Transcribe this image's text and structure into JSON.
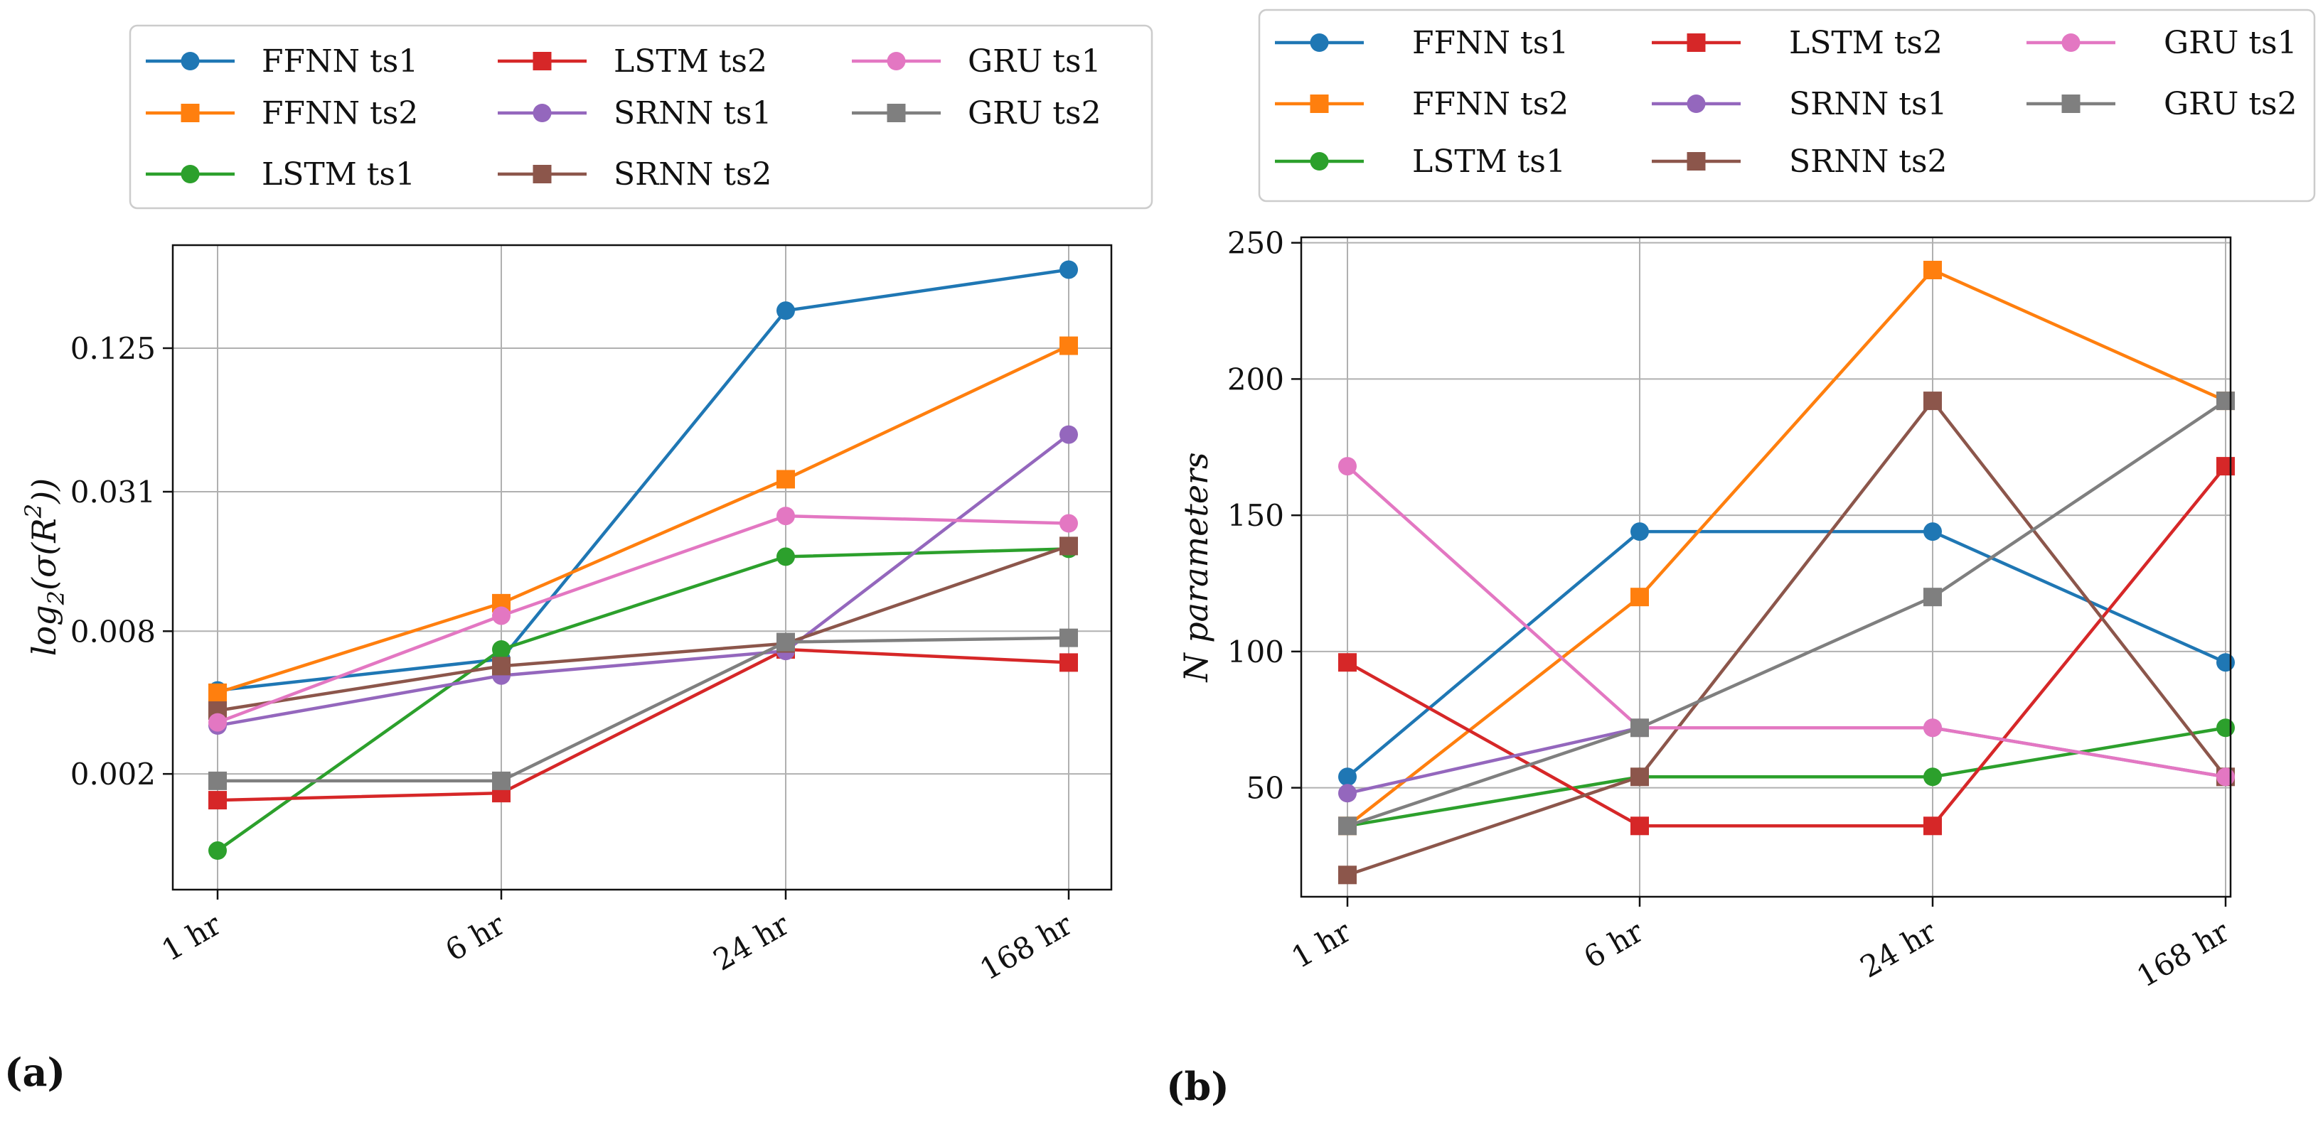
{
  "figure": {
    "panel_a_label": "(a)",
    "panel_b_label": "(b)"
  },
  "chart_data": [
    {
      "type": "line",
      "title": "",
      "xlabel": "",
      "ylabel": "log₂(σ(R²))",
      "ylabel_parts": {
        "main": "log",
        "sub": "2",
        "rest": "(σ(R",
        "sup": "2",
        "close": "))"
      },
      "yscale": "log2",
      "categories": [
        "1 hr",
        "6 hr",
        "24 hr",
        "168 hr"
      ],
      "yticks": [
        0.002,
        0.008,
        0.031,
        0.125
      ],
      "ytick_labels": [
        "0.002",
        "0.008",
        "0.031",
        "0.125"
      ],
      "ylim": [
        0.00065,
        0.34
      ],
      "grid": true,
      "legend": "top-center",
      "legend_columns": 3,
      "series": [
        {
          "name": "FFNN ts1",
          "color": "#1f77b4",
          "marker": "circle",
          "values": [
            0.0045,
            0.0061,
            0.18,
            0.268
          ]
        },
        {
          "name": "FFNN ts2",
          "color": "#ff7f0e",
          "marker": "square",
          "values": [
            0.0044,
            0.0105,
            0.035,
            0.128
          ]
        },
        {
          "name": "LSTM ts1",
          "color": "#2ca02c",
          "marker": "circle",
          "values": [
            0.00095,
            0.0067,
            0.0165,
            0.0178
          ]
        },
        {
          "name": "LSTM ts2",
          "color": "#d62728",
          "marker": "square",
          "values": [
            0.00155,
            0.00166,
            0.0067,
            0.0059
          ]
        },
        {
          "name": "SRNN ts1",
          "color": "#9467bd",
          "marker": "circle",
          "values": [
            0.0032,
            0.0052,
            0.0066,
            0.054
          ]
        },
        {
          "name": "SRNN ts2",
          "color": "#8c564b",
          "marker": "square",
          "values": [
            0.0037,
            0.0057,
            0.0071,
            0.0183
          ]
        },
        {
          "name": "GRU ts1",
          "color": "#e377c2",
          "marker": "circle",
          "values": [
            0.0033,
            0.0093,
            0.0245,
            0.0228
          ]
        },
        {
          "name": "GRU ts2",
          "color": "#7f7f7f",
          "marker": "square",
          "values": [
            0.00187,
            0.00187,
            0.0072,
            0.0075
          ]
        }
      ]
    },
    {
      "type": "line",
      "title": "",
      "xlabel": "",
      "ylabel": "N parameters",
      "categories": [
        "1 hr",
        "6 hr",
        "24 hr",
        "168 hr"
      ],
      "yticks": [
        50,
        100,
        150,
        200,
        250
      ],
      "ytick_labels": [
        "50",
        "100",
        "150",
        "200",
        "250"
      ],
      "ylim": [
        10,
        252
      ],
      "grid": true,
      "legend": "top-center",
      "legend_columns": 3,
      "series": [
        {
          "name": "FFNN ts1",
          "color": "#1f77b4",
          "marker": "circle",
          "values": [
            54,
            144,
            144,
            96
          ]
        },
        {
          "name": "FFNN ts2",
          "color": "#ff7f0e",
          "marker": "square",
          "values": [
            36,
            120,
            240,
            192
          ]
        },
        {
          "name": "LSTM ts1",
          "color": "#2ca02c",
          "marker": "circle",
          "values": [
            36,
            54,
            54,
            72
          ]
        },
        {
          "name": "LSTM ts2",
          "color": "#d62728",
          "marker": "square",
          "values": [
            96,
            36,
            36,
            168
          ]
        },
        {
          "name": "SRNN ts1",
          "color": "#9467bd",
          "marker": "circle",
          "values": [
            48,
            72,
            72,
            54
          ]
        },
        {
          "name": "SRNN ts2",
          "color": "#8c564b",
          "marker": "square",
          "values": [
            18,
            54,
            192,
            54
          ]
        },
        {
          "name": "GRU ts1",
          "color": "#e377c2",
          "marker": "circle",
          "values": [
            168,
            72,
            72,
            54
          ]
        },
        {
          "name": "GRU ts2",
          "color": "#7f7f7f",
          "marker": "square",
          "values": [
            36,
            72,
            120,
            192
          ]
        }
      ]
    }
  ]
}
